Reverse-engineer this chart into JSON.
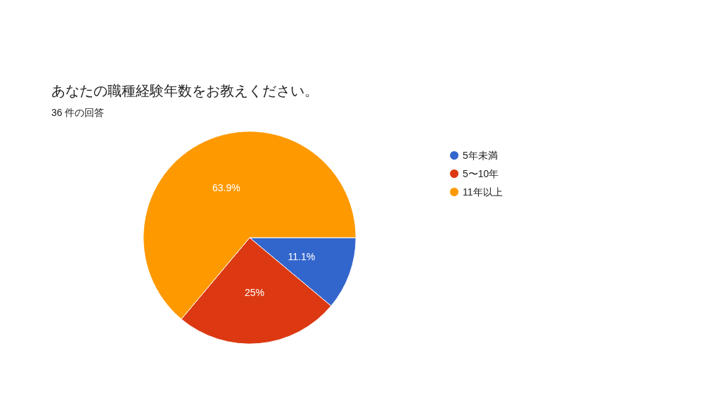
{
  "chart_data": {
    "type": "pie",
    "title": "あなたの職種経験年数をお教えください。",
    "subtitle": "36 件の回答",
    "categories": [
      "5年未満",
      "5〜10年",
      "11年以上"
    ],
    "values": [
      11.1,
      25,
      63.9
    ],
    "value_labels": [
      "11.1%",
      "25%",
      "63.9%"
    ],
    "colors": [
      "#3366cc",
      "#dc3912",
      "#ff9900"
    ],
    "legend": "right"
  }
}
